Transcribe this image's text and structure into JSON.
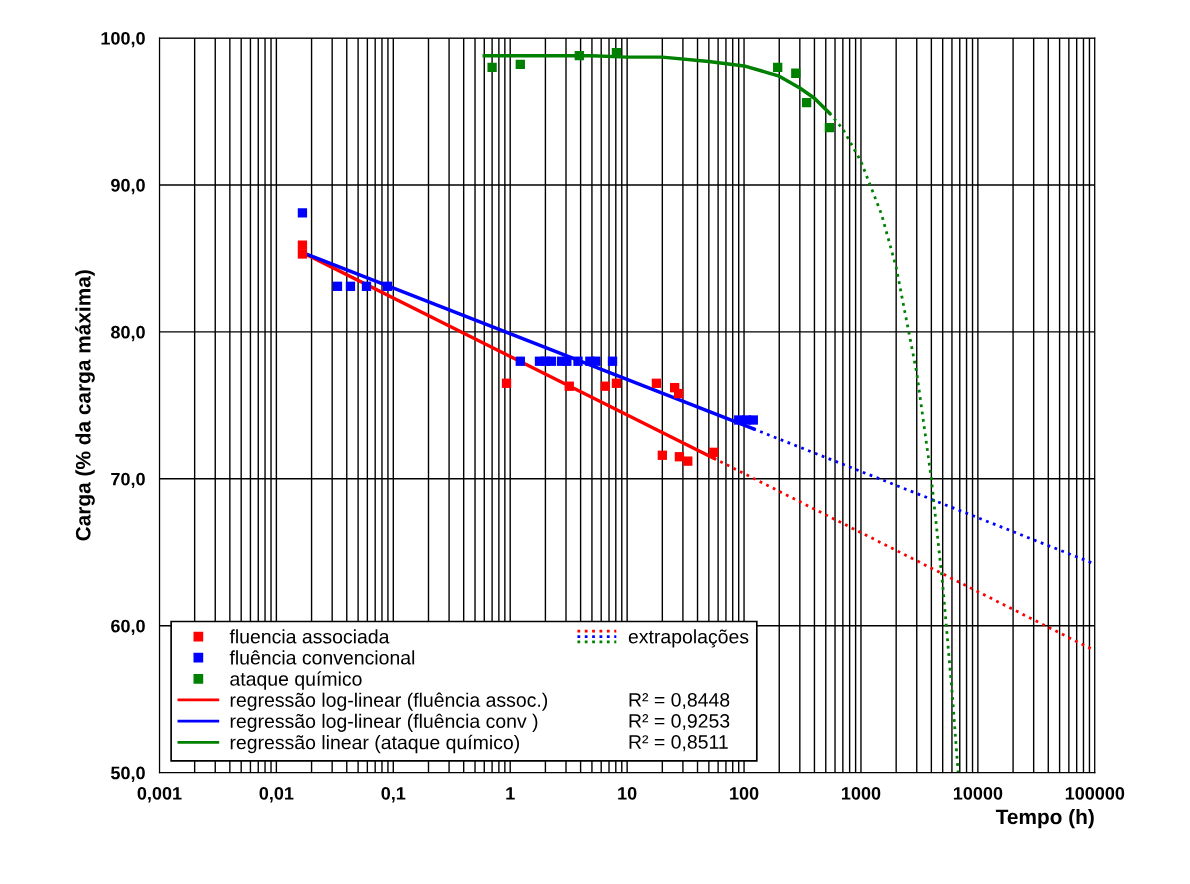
{
  "chart_data": {
    "type": "scatter",
    "xlabel": "Tempo (h)",
    "ylabel": "Carga (% da carga máxima)",
    "log": "x",
    "grid": true,
    "legend": "bottom left",
    "xlim": [
      0.001,
      100000
    ],
    "ylim": [
      50,
      100
    ],
    "xticks": [
      {
        "value": 0.001,
        "label": "0,001"
      },
      {
        "value": 0.01,
        "label": "0,01"
      },
      {
        "value": 0.1,
        "label": "0,1"
      },
      1,
      10,
      100,
      1000,
      10000,
      100000
    ],
    "yticks": [
      {
        "value": 50,
        "label": "50,0"
      },
      {
        "value": 60,
        "label": "60,0"
      },
      {
        "value": 70,
        "label": "70,0"
      },
      {
        "value": 80,
        "label": "80,0"
      },
      {
        "value": 90,
        "label": "90,0"
      },
      {
        "value": 100,
        "label": "100,0"
      }
    ],
    "series": [
      {
        "marker": "square",
        "name": "fluencia associada",
        "color": "#ff0000",
        "x": [
          0.0167,
          0.0167,
          0.93,
          3.2,
          6.5,
          8.1,
          17.8,
          25.5,
          27.6,
          20,
          28,
          33,
          55
        ],
        "values": [
          85.9,
          85.3,
          76.5,
          76.3,
          76.3,
          76.5,
          76.5,
          76.2,
          75.8,
          71.6,
          71.5,
          71.2,
          71.8
        ]
      },
      {
        "marker": "square",
        "name": "fluência convencional",
        "color": "#0000ff",
        "x": [
          0.0167,
          0.0333,
          0.043,
          0.059,
          0.089,
          1.22,
          1.78,
          2.0,
          2.25,
          2.75,
          3.05,
          3.8,
          4.8,
          5.4,
          7.5,
          90,
          105,
          120
        ],
        "values": [
          88.1,
          83.1,
          83.1,
          83.1,
          83.1,
          78.0,
          78.0,
          78.0,
          78.0,
          78.0,
          78.0,
          78.0,
          78.0,
          78.0,
          78.0,
          74.0,
          74.0,
          74.0
        ]
      },
      {
        "marker": "square",
        "name": "ataque químico",
        "color": "#008000",
        "x": [
          0.7,
          1.22,
          3.9,
          8.1,
          194,
          277,
          343,
          537
        ],
        "values": [
          98.0,
          98.2,
          98.8,
          99.0,
          98.0,
          97.6,
          95.6,
          93.9
        ]
      },
      {
        "type": "line",
        "name": "regressão log-linear (fluência assoc.)",
        "color": "#ff0000",
        "line_style": "solid",
        "x": [
          0.0167,
          55
        ],
        "values": [
          85.4,
          71.4
        ]
      },
      {
        "type": "line",
        "name": "regressão log-linear (fluência conv )",
        "color": "#0000ff",
        "line_style": "solid",
        "x": [
          0.0167,
          120
        ],
        "values": [
          85.4,
          73.4
        ]
      },
      {
        "type": "line",
        "name": "regressão linear (ataque químico)",
        "color": "#008000",
        "line_style": "solid",
        "x": [
          0.6,
          1,
          2,
          5,
          10,
          20,
          50,
          100,
          150,
          200,
          300,
          400,
          537
        ],
        "values": [
          98.8,
          98.8,
          98.8,
          98.8,
          98.7,
          98.7,
          98.4,
          98.1,
          97.7,
          97.4,
          96.6,
          95.9,
          94.9
        ]
      },
      {
        "type": "line",
        "name": "extrapolações",
        "color": "#ff0000",
        "line_style": "dotted",
        "x": [
          55,
          100000
        ],
        "values": [
          71.4,
          58.3
        ]
      },
      {
        "type": "line",
        "color": "#0000ff",
        "line_style": "dotted",
        "x": [
          120,
          100000
        ],
        "values": [
          73.4,
          64.2
        ]
      },
      {
        "type": "line",
        "color": "#008000",
        "line_style": "dotted",
        "x": [
          537,
          700,
          1000,
          1500,
          2000,
          3000,
          4000,
          5000,
          6000,
          6780
        ],
        "values": [
          94.9,
          93.8,
          91.6,
          88.0,
          84.4,
          77.2,
          70.0,
          62.8,
          55.6,
          50.0
        ]
      }
    ],
    "annotations": [
      "R² = 0,8448",
      "R² = 0,9253",
      "R² = 0,8511"
    ]
  }
}
